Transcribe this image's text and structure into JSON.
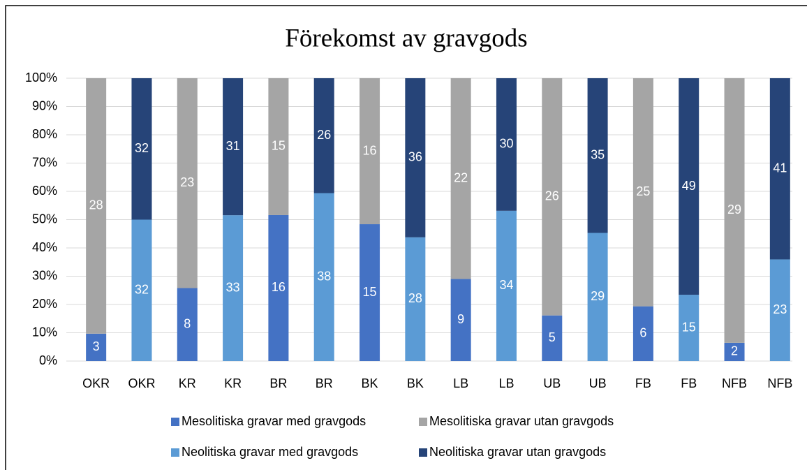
{
  "chart_data": {
    "type": "stacked_percent_bar",
    "title": "Förekomst av gravgods",
    "categories": [
      "OKR",
      "OKR",
      "KR",
      "KR",
      "BR",
      "BR",
      "BK",
      "BK",
      "LB",
      "LB",
      "UB",
      "UB",
      "FB",
      "FB",
      "NFB",
      "NFB"
    ],
    "series": [
      {
        "name": "Mesolitiska gravar med gravgods",
        "color": "#4472c4",
        "values": [
          3,
          null,
          8,
          null,
          16,
          null,
          15,
          null,
          9,
          null,
          5,
          null,
          6,
          null,
          2,
          null
        ]
      },
      {
        "name": "Mesolitiska gravar utan gravgods",
        "color": "#a5a5a5",
        "values": [
          28,
          null,
          23,
          null,
          15,
          null,
          16,
          null,
          22,
          null,
          26,
          null,
          25,
          null,
          29,
          null
        ]
      },
      {
        "name": "Neolitiska gravar med gravgods",
        "color": "#5b9bd5",
        "values": [
          null,
          32,
          null,
          33,
          null,
          38,
          null,
          28,
          null,
          34,
          null,
          29,
          null,
          15,
          null,
          23
        ]
      },
      {
        "name": "Neolitiska gravar utan gravgods",
        "color": "#264478",
        "values": [
          null,
          32,
          null,
          31,
          null,
          26,
          null,
          36,
          null,
          30,
          null,
          35,
          null,
          49,
          null,
          41
        ]
      }
    ],
    "ylim": [
      0,
      100
    ],
    "yticks": [
      {
        "value": 0,
        "label": "0%"
      },
      {
        "value": 10,
        "label": "10%"
      },
      {
        "value": 20,
        "label": "20%"
      },
      {
        "value": 30,
        "label": "30%"
      },
      {
        "value": 40,
        "label": "40%"
      },
      {
        "value": 50,
        "label": "50%"
      },
      {
        "value": 60,
        "label": "60%"
      },
      {
        "value": 70,
        "label": "70%"
      },
      {
        "value": 80,
        "label": "80%"
      },
      {
        "value": 90,
        "label": "90%"
      },
      {
        "value": 100,
        "label": "100%"
      }
    ],
    "grid": true,
    "legend": "bottom"
  }
}
